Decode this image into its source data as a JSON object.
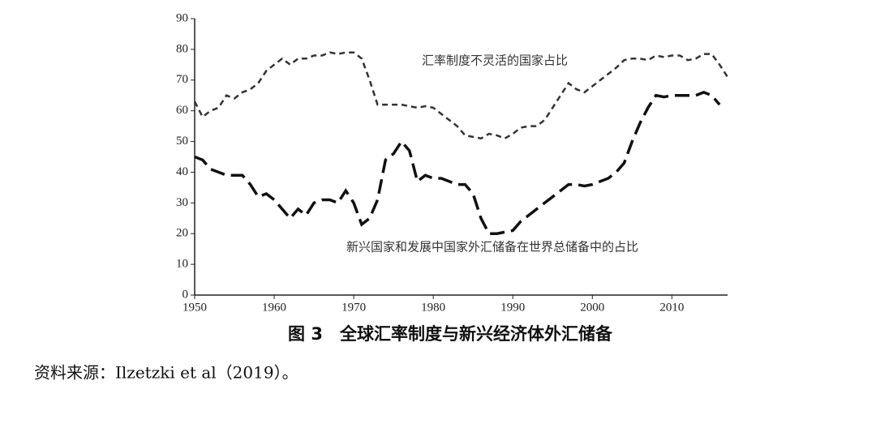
{
  "chart_data": {
    "type": "line",
    "caption": "图 3　全球汇率制度与新兴经济体外汇储备",
    "source": "资料来源：Ilzetzki et al（2019）。",
    "x": [
      1950,
      1951,
      1952,
      1953,
      1954,
      1955,
      1956,
      1957,
      1958,
      1959,
      1960,
      1961,
      1962,
      1963,
      1964,
      1965,
      1966,
      1967,
      1968,
      1969,
      1970,
      1971,
      1972,
      1973,
      1974,
      1975,
      1976,
      1977,
      1978,
      1979,
      1980,
      1981,
      1982,
      1983,
      1984,
      1985,
      1986,
      1987,
      1988,
      1989,
      1990,
      1991,
      1992,
      1993,
      1994,
      1995,
      1996,
      1997,
      1998,
      1999,
      2000,
      2001,
      2002,
      2003,
      2004,
      2005,
      2006,
      2007,
      2008,
      2009,
      2010,
      2011,
      2012,
      2013,
      2014,
      2015,
      2016,
      2017
    ],
    "series": [
      {
        "name": "汇率制度不灵活的国家占比",
        "color": "#333333",
        "values": [
          63,
          58,
          60,
          61,
          65,
          64,
          66,
          67,
          69,
          73,
          75,
          77,
          75,
          77,
          77,
          78,
          78,
          79,
          78.5,
          79,
          79,
          77,
          70,
          62,
          62,
          62,
          62,
          61.5,
          61,
          61.5,
          61,
          59,
          57,
          55,
          52,
          51.5,
          51,
          52.5,
          52,
          51,
          52.5,
          54.5,
          55,
          55,
          57,
          61,
          65,
          69,
          67,
          66,
          68,
          70,
          72,
          74,
          76.5,
          77,
          77,
          76.5,
          78,
          77.5,
          78,
          78,
          76.5,
          77,
          78.5,
          78.5,
          75,
          71
        ]
      },
      {
        "name": "新兴国家和发展中国家外汇储备在世界总储备中的占比",
        "color": "#111111",
        "values": [
          45,
          44,
          41,
          40,
          39,
          39,
          39,
          36,
          32,
          33,
          31,
          28,
          25,
          28,
          26,
          30,
          31,
          31,
          30,
          34,
          30,
          23,
          25,
          31,
          44,
          46,
          50,
          47,
          37,
          39,
          38,
          38,
          37,
          36,
          36,
          33,
          25,
          20,
          20,
          20.5,
          21,
          24,
          26,
          28,
          30,
          32,
          34,
          36,
          36,
          35.5,
          36,
          37,
          38,
          40,
          43,
          50,
          56,
          61,
          65,
          64.5,
          65,
          65,
          65,
          65,
          66,
          65,
          62,
          null
        ]
      }
    ],
    "xlim": [
      1950,
      2017
    ],
    "xticks": [
      1950,
      1960,
      1970,
      1980,
      1990,
      2000,
      2010
    ],
    "ylim": [
      0,
      90
    ],
    "yticks": [
      0,
      10,
      20,
      30,
      40,
      50,
      60,
      70,
      80,
      90
    ]
  }
}
